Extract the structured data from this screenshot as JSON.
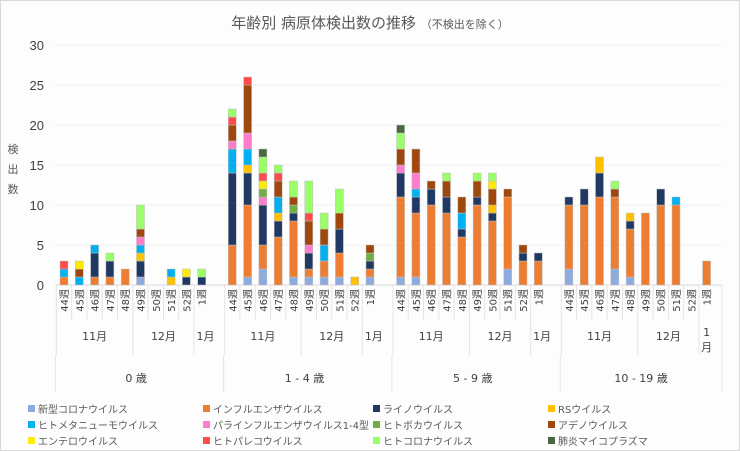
{
  "chart_data": {
    "type": "bar",
    "stacked": true,
    "title": "年齢別 病原体検出数の推移",
    "subtitle": "（不検出を除く）",
    "xlabel": "",
    "ylabel": "検出数",
    "ylim": [
      0,
      30
    ],
    "yticks": [
      0,
      5,
      10,
      15,
      20,
      25,
      30
    ],
    "grid": true,
    "legend_position": "bottom",
    "weeks": [
      "44週",
      "45週",
      "46週",
      "47週",
      "48週",
      "49週",
      "50週",
      "51週",
      "52週",
      "1週"
    ],
    "months": [
      {
        "label": "11月",
        "weeks": 5
      },
      {
        "label": "12月",
        "weeks": 4
      },
      {
        "label": "1月",
        "weeks": 1
      }
    ],
    "groups": [
      {
        "label": "0 歳"
      },
      {
        "label": "1 - 4 歳"
      },
      {
        "label": "5 - 9 歳"
      },
      {
        "label": "10 - 19 歳"
      }
    ],
    "series": [
      {
        "name": "新型コロナウイルス",
        "color": "#8faadc",
        "values": [
          [
            0,
            0,
            0,
            0,
            0,
            1,
            0,
            0,
            0,
            0
          ],
          [
            0,
            1,
            2,
            0,
            1,
            1,
            1,
            1,
            0,
            1
          ],
          [
            1,
            1,
            0,
            0,
            0,
            0,
            0,
            2,
            0,
            0
          ],
          [
            2,
            0,
            0,
            2,
            1,
            0,
            0,
            0,
            0,
            0
          ]
        ]
      },
      {
        "name": "インフルエンザウイルス",
        "color": "#ed7d31",
        "values": [
          [
            1,
            0,
            1,
            1,
            2,
            0,
            0,
            0,
            0,
            0
          ],
          [
            5,
            9,
            3,
            6,
            7,
            1,
            2,
            3,
            0,
            1
          ],
          [
            10,
            8,
            10,
            9,
            6,
            10,
            8,
            9,
            3,
            3
          ],
          [
            8,
            10,
            11,
            9,
            6,
            9,
            10,
            10,
            0,
            3
          ]
        ]
      },
      {
        "name": "ライノウイルス",
        "color": "#203864",
        "values": [
          [
            0,
            0,
            3,
            2,
            0,
            2,
            0,
            0,
            1,
            1
          ],
          [
            9,
            4,
            5,
            2,
            1,
            2,
            0,
            3,
            0,
            1
          ],
          [
            3,
            2,
            2,
            2,
            1,
            1,
            1,
            0,
            1,
            1
          ],
          [
            1,
            2,
            3,
            0,
            1,
            0,
            2,
            0,
            0,
            0
          ]
        ]
      },
      {
        "name": "RSウイルス",
        "color": "#ffc000",
        "values": [
          [
            0,
            0,
            0,
            0,
            0,
            1,
            0,
            1,
            0,
            0
          ],
          [
            0,
            1,
            0,
            1,
            0,
            0,
            0,
            0,
            1,
            0
          ],
          [
            0,
            0,
            0,
            0,
            0,
            0,
            1,
            0,
            0,
            0
          ],
          [
            0,
            0,
            2,
            0,
            1,
            0,
            0,
            0,
            0,
            0
          ]
        ]
      },
      {
        "name": "ヒトメタニューモウイルス",
        "color": "#00b0f0",
        "values": [
          [
            1,
            1,
            1,
            0,
            0,
            1,
            0,
            1,
            0,
            0
          ],
          [
            3,
            2,
            0,
            2,
            0,
            0,
            2,
            0,
            0,
            0
          ],
          [
            0,
            1,
            0,
            0,
            2,
            0,
            0,
            0,
            0,
            0
          ],
          [
            0,
            0,
            0,
            0,
            0,
            0,
            0,
            1,
            0,
            0
          ]
        ]
      },
      {
        "name": "パラインフルエンザウイルス1-4型",
        "color": "#ff7ccd",
        "values": [
          [
            0,
            0,
            0,
            0,
            0,
            1,
            0,
            0,
            0,
            0
          ],
          [
            1,
            2,
            1,
            0,
            0,
            1,
            0,
            0,
            0,
            0
          ],
          [
            1,
            2,
            0,
            0,
            0,
            0,
            0,
            0,
            0,
            0
          ],
          [
            0,
            0,
            0,
            0,
            0,
            0,
            0,
            0,
            0,
            0
          ]
        ]
      },
      {
        "name": "ヒトボカウイルス",
        "color": "#70ad47",
        "values": [
          [
            0,
            0,
            0,
            0,
            0,
            0,
            0,
            0,
            0,
            0
          ],
          [
            0,
            0,
            1,
            0,
            1,
            0,
            0,
            0,
            0,
            1
          ],
          [
            0,
            0,
            0,
            0,
            0,
            0,
            0,
            0,
            0,
            0
          ],
          [
            0,
            0,
            0,
            0,
            0,
            0,
            0,
            0,
            0,
            0
          ]
        ]
      },
      {
        "name": "アデノウイルス",
        "color": "#9e480e",
        "values": [
          [
            0,
            1,
            0,
            0,
            0,
            1,
            0,
            0,
            0,
            0
          ],
          [
            2,
            6,
            0,
            2,
            1,
            3,
            2,
            2,
            0,
            1
          ],
          [
            2,
            3,
            1,
            2,
            2,
            2,
            2,
            1,
            1,
            0
          ],
          [
            0,
            0,
            0,
            1,
            0,
            0,
            0,
            0,
            0,
            0
          ]
        ]
      },
      {
        "name": "エンテロウイルス",
        "color": "#ffeb00",
        "values": [
          [
            0,
            1,
            0,
            0,
            0,
            0,
            0,
            0,
            1,
            0
          ],
          [
            0,
            0,
            1,
            0,
            0,
            0,
            0,
            0,
            0,
            0
          ],
          [
            0,
            0,
            0,
            0,
            0,
            0,
            1,
            0,
            0,
            0
          ],
          [
            0,
            0,
            0,
            0,
            0,
            0,
            0,
            0,
            0,
            0
          ]
        ]
      },
      {
        "name": "ヒトパレコウイルス",
        "color": "#ff4b4b",
        "values": [
          [
            1,
            0,
            0,
            0,
            0,
            0,
            0,
            0,
            0,
            0
          ],
          [
            1,
            1,
            1,
            1,
            0,
            1,
            0,
            0,
            0,
            0
          ],
          [
            0,
            0,
            0,
            0,
            0,
            0,
            0,
            0,
            0,
            0
          ],
          [
            0,
            0,
            0,
            0,
            0,
            0,
            0,
            0,
            0,
            0
          ]
        ]
      },
      {
        "name": "ヒトコロナウイルス",
        "color": "#99ff66",
        "values": [
          [
            0,
            0,
            0,
            1,
            0,
            3,
            0,
            0,
            0,
            1
          ],
          [
            1,
            0,
            2,
            1,
            2,
            4,
            2,
            3,
            0,
            0
          ],
          [
            2,
            0,
            0,
            1,
            0,
            1,
            1,
            0,
            0,
            0
          ],
          [
            0,
            0,
            0,
            1,
            0,
            0,
            0,
            0,
            0,
            0
          ]
        ]
      },
      {
        "name": "肺炎マイコプラズマ",
        "color": "#4a6741",
        "values": [
          [
            0,
            0,
            0,
            0,
            0,
            0,
            0,
            0,
            0,
            0
          ],
          [
            0,
            0,
            1,
            0,
            0,
            0,
            0,
            0,
            0,
            0
          ],
          [
            1,
            0,
            0,
            0,
            0,
            0,
            0,
            0,
            0,
            0
          ],
          [
            0,
            0,
            0,
            0,
            0,
            0,
            0,
            0,
            0,
            0
          ]
        ]
      }
    ]
  }
}
